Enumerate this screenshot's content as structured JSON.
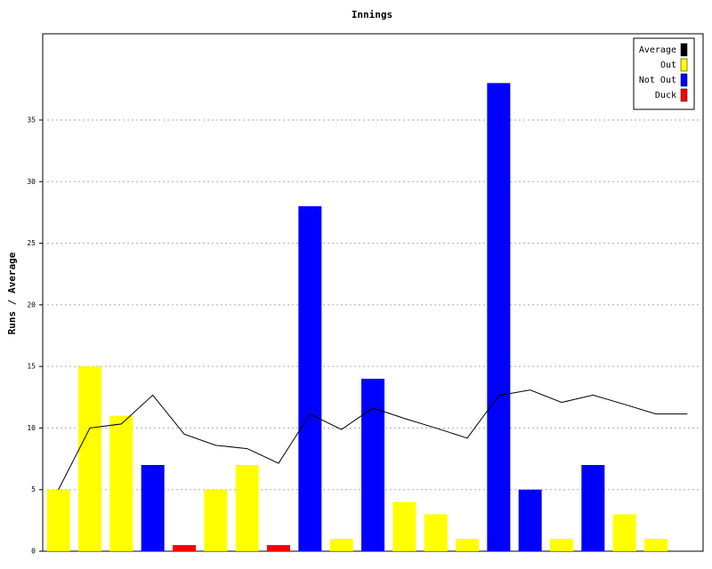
{
  "chart_data": {
    "type": "bar",
    "title": "Innings",
    "y_label": "Runs / Average",
    "categories": [
      null,
      null,
      null,
      null,
      null,
      null,
      null,
      null,
      null,
      null,
      null,
      null,
      null,
      null,
      null,
      null,
      null,
      null,
      null,
      null,
      null
    ],
    "series": [
      {
        "name": "Average",
        "color": "#000000",
        "type": "line",
        "values": [
          5,
          10,
          10.33,
          12.67,
          9.5,
          8.6,
          8.33,
          7.14,
          11.14,
          9.88,
          11.63,
          10.78,
          10,
          9.18,
          12.64,
          13.09,
          12.08,
          12.67,
          11.92,
          11.14,
          11.14
        ]
      },
      {
        "name": "Out",
        "color": "#ffff00",
        "type": "bar",
        "values": [
          5,
          15,
          11,
          null,
          null,
          5,
          7,
          null,
          null,
          1,
          null,
          4,
          3,
          1,
          null,
          null,
          1,
          null,
          3,
          1,
          null
        ]
      },
      {
        "name": "Not Out",
        "color": "#0000ff",
        "type": "bar",
        "values": [
          null,
          null,
          null,
          7,
          null,
          null,
          null,
          null,
          28,
          null,
          14,
          null,
          null,
          null,
          38,
          5,
          null,
          7,
          null,
          null,
          null
        ]
      },
      {
        "name": "Duck",
        "color": "#ff0000",
        "type": "bar",
        "values": [
          null,
          null,
          null,
          null,
          0.5,
          null,
          null,
          0.5,
          null,
          null,
          null,
          null,
          null,
          null,
          null,
          null,
          null,
          null,
          null,
          null,
          null
        ]
      }
    ],
    "ylim": [
      0,
      42
    ],
    "yticks": [
      0,
      5,
      10,
      15,
      20,
      25,
      30,
      35
    ],
    "grid": true,
    "legend": "top-right"
  }
}
